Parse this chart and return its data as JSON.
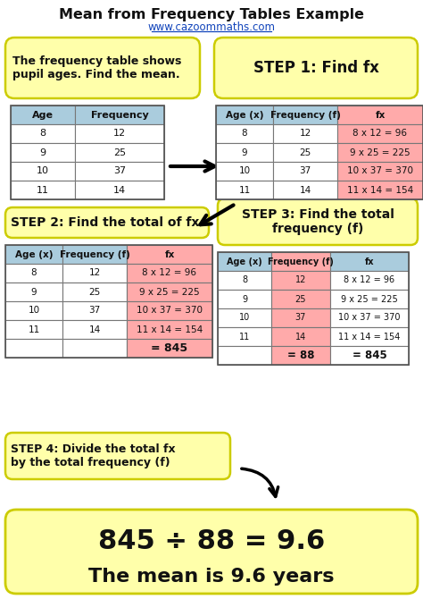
{
  "title": "Mean from Frequency Tables Example",
  "subtitle": "www.cazoommaths.com",
  "bg_color": "#ffffff",
  "yellow_bg": "#ffffaa",
  "blue_header": "#aaccdd",
  "pink_cell": "#ffaaaa",
  "ages": [
    8,
    9,
    10,
    11
  ],
  "frequencies": [
    12,
    25,
    37,
    14
  ],
  "fx_values": [
    "8 x 12 = 96",
    "9 x 25 = 225",
    "10 x 37 = 370",
    "11 x 14 = 154"
  ],
  "total_fx": "= 845",
  "total_f": "= 88",
  "step1_text": "STEP 1: Find fx",
  "step2_text": "STEP 2: Find the total of fx",
  "step3_text": "STEP 3: Find the total\nfrequency (f)",
  "step4_text": "STEP 4: Divide the total fx\nby the total frequency (f)",
  "problem_text": "The frequency table shows\npupil ages. Find the mean.",
  "result_line1": "845 ÷ 88 = 9.6",
  "result_line2": "The mean is 9.6 years"
}
